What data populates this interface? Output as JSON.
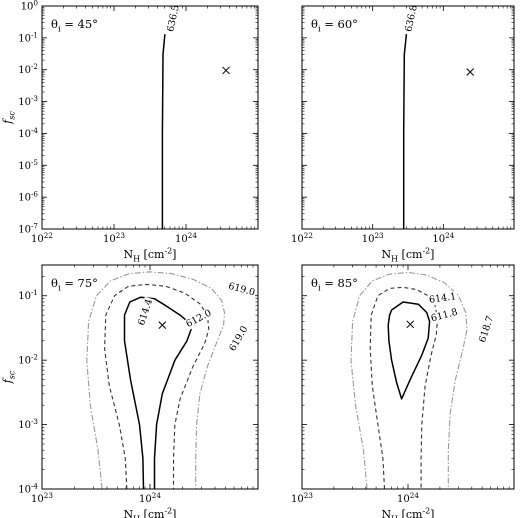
{
  "chart_data": [
    {
      "type": "contour",
      "panel_label": "θi = 45°",
      "xlabel": "N_H [cm^-2]",
      "ylabel": "f_sc",
      "x_scale": "log",
      "y_scale": "log",
      "xlim": [
        1e+22,
        1e+25
      ],
      "ylim": [
        1e-07,
        1
      ],
      "x_ticks": [
        {
          "value": 1e+22,
          "label": "10^22"
        },
        {
          "value": 1e+23,
          "label": "10^23"
        },
        {
          "value": 1e+24,
          "label": "10^24"
        }
      ],
      "y_ticks": [
        {
          "value": 1e-07,
          "label": "10^-7"
        },
        {
          "value": 1e-06,
          "label": "10^-6"
        },
        {
          "value": 1e-05,
          "label": "10^-5"
        },
        {
          "value": 0.0001,
          "label": "10^-4"
        },
        {
          "value": 0.001,
          "label": "10^-3"
        },
        {
          "value": 0.01,
          "label": "10^-2"
        },
        {
          "value": 0.1,
          "label": "10^-1"
        },
        {
          "value": 1,
          "label": "10^0"
        }
      ],
      "best_fit": {
        "x": 3.6e+24,
        "y": 0.0095
      },
      "contours": [
        {
          "level_label": "636.5",
          "style": "solid",
          "points": [
            [
              4.7e+23,
              1e-07
            ],
            [
              4.7e+23,
              0.0001
            ],
            [
              4.8e+23,
              0.03
            ],
            [
              5.1e+23,
              0.13
            ]
          ]
        }
      ]
    },
    {
      "type": "contour",
      "panel_label": "θi = 60°",
      "xlabel": "N_H [cm^-2]",
      "ylabel": "",
      "x_scale": "log",
      "y_scale": "log",
      "xlim": [
        1e+22,
        1e+25
      ],
      "ylim": [
        1e-07,
        1
      ],
      "x_ticks": [
        {
          "value": 1e+22,
          "label": "10^22"
        },
        {
          "value": 1e+23,
          "label": "10^23"
        },
        {
          "value": 1e+24,
          "label": "10^24"
        }
      ],
      "y_ticks": [],
      "best_fit": {
        "x": 2.4e+24,
        "y": 0.0085
      },
      "contours": [
        {
          "level_label": "636.8",
          "style": "solid",
          "points": [
            [
              2.75e+23,
              1e-07
            ],
            [
              2.75e+23,
              0.0001
            ],
            [
              2.8e+23,
              0.03
            ],
            [
              3e+23,
              0.13
            ]
          ]
        }
      ]
    },
    {
      "type": "contour",
      "panel_label": "θi = 75°",
      "xlabel": "N_H [cm^-2]",
      "ylabel": "f_sc",
      "x_scale": "log",
      "y_scale": "log",
      "xlim": [
        1e+23,
        1e+25
      ],
      "ylim": [
        0.0001,
        0.3
      ],
      "x_ticks": [
        {
          "value": 1e+23,
          "label": "10^23"
        },
        {
          "value": 1e+24,
          "label": "10^24"
        }
      ],
      "y_ticks": [
        {
          "value": 0.0001,
          "label": "10^-4"
        },
        {
          "value": 0.001,
          "label": "10^-3"
        },
        {
          "value": 0.01,
          "label": "10^-2"
        },
        {
          "value": 0.1,
          "label": "10^-1"
        }
      ],
      "best_fit": {
        "x": 1.3e+24,
        "y": 0.035
      },
      "contours": [
        {
          "level_label": "612.0",
          "style": "solid",
          "closed": false,
          "points": [
            [
              8.7e+23,
              0.0001
            ],
            [
              8.6e+23,
              0.0003
            ],
            [
              8e+23,
              0.001
            ],
            [
              6.6e+23,
              0.005
            ],
            [
              5.8e+23,
              0.02
            ],
            [
              5.8e+23,
              0.05
            ],
            [
              6.5e+23,
              0.08
            ],
            [
              8.2e+23,
              0.095
            ],
            [
              1.1e+24,
              0.09
            ],
            [
              1.4e+24,
              0.07
            ],
            [
              1.9e+24,
              0.05
            ],
            [
              2.3e+24,
              0.038
            ],
            [
              2.4e+24,
              0.03
            ],
            [
              2.2e+24,
              0.02
            ],
            [
              1.7e+24,
              0.01
            ],
            [
              1.3e+24,
              0.003
            ],
            [
              1.15e+24,
              0.001
            ],
            [
              1.1e+24,
              0.0003
            ],
            [
              1.1e+24,
              0.0001
            ]
          ]
        },
        {
          "level_label": "614.4",
          "style": "dashed",
          "closed": false,
          "points": [
            [
              6.1e+23,
              0.0001
            ],
            [
              5.9e+23,
              0.0003
            ],
            [
              5.2e+23,
              0.001
            ],
            [
              4.2e+23,
              0.004
            ],
            [
              3.8e+23,
              0.015
            ],
            [
              3.9e+23,
              0.05
            ],
            [
              4.7e+23,
              0.1
            ],
            [
              6.3e+23,
              0.14
            ],
            [
              9.3e+23,
              0.15
            ],
            [
              1.4e+24,
              0.14
            ],
            [
              2.1e+24,
              0.11
            ],
            [
              2.9e+24,
              0.075
            ],
            [
              3.4e+24,
              0.05
            ],
            [
              3.5e+24,
              0.03
            ],
            [
              3.2e+24,
              0.018
            ],
            [
              2.5e+24,
              0.008
            ],
            [
              1.9e+24,
              0.0025
            ],
            [
              1.7e+24,
              0.001
            ],
            [
              1.65e+24,
              0.0003
            ],
            [
              1.65e+24,
              0.0001
            ]
          ]
        },
        {
          "level_label": "619.0",
          "style": "dashdot",
          "closed": false,
          "points": [
            [
              3.6e+23,
              0.0001
            ],
            [
              3.3e+23,
              0.0004
            ],
            [
              2.8e+23,
              0.002
            ],
            [
              2.6e+23,
              0.01
            ],
            [
              2.7e+23,
              0.04
            ],
            [
              3.2e+23,
              0.1
            ],
            [
              4.3e+23,
              0.17
            ],
            [
              6.4e+23,
              0.22
            ],
            [
              1e+24,
              0.235
            ],
            [
              1.6e+24,
              0.22
            ],
            [
              2.5e+24,
              0.18
            ],
            [
              3.7e+24,
              0.13
            ],
            [
              4.6e+24,
              0.085
            ],
            [
              4.9e+24,
              0.055
            ],
            [
              4.8e+24,
              0.035
            ],
            [
              4.2e+24,
              0.02
            ],
            [
              3.4e+24,
              0.008
            ],
            [
              2.9e+24,
              0.003
            ],
            [
              2.7e+24,
              0.001
            ],
            [
              2.65e+24,
              0.0003
            ],
            [
              2.65e+24,
              0.0001
            ]
          ]
        }
      ]
    },
    {
      "type": "contour",
      "panel_label": "θi = 85°",
      "xlabel": "N_H [cm^-2]",
      "ylabel": "",
      "x_scale": "log",
      "y_scale": "log",
      "xlim": [
        1e+23,
        1e+25
      ],
      "ylim": [
        0.0001,
        0.3
      ],
      "x_ticks": [
        {
          "value": 1e+23,
          "label": "10^23"
        },
        {
          "value": 1e+24,
          "label": "10^24"
        }
      ],
      "y_ticks": [],
      "best_fit": {
        "x": 1.05e+24,
        "y": 0.036
      },
      "contours": [
        {
          "level_label": "611.8",
          "style": "solid",
          "closed": true,
          "points": [
            [
              7e+23,
              0.06
            ],
            [
              9e+23,
              0.08
            ],
            [
              1.25e+24,
              0.074
            ],
            [
              1.5e+24,
              0.055
            ],
            [
              1.6e+24,
              0.04
            ],
            [
              1.55e+24,
              0.022
            ],
            [
              1.35e+24,
              0.012
            ],
            [
              1.05e+24,
              0.005
            ],
            [
              8.7e+23,
              0.0025
            ],
            [
              7.8e+23,
              0.0045
            ],
            [
              7e+23,
              0.01
            ],
            [
              6.6e+23,
              0.02
            ],
            [
              6.5e+23,
              0.035
            ],
            [
              6.7e+23,
              0.05
            ]
          ]
        },
        {
          "level_label": "614.1",
          "style": "dashed",
          "closed": false,
          "points": [
            [
              6e+23,
              0.0001
            ],
            [
              5.8e+23,
              0.0003
            ],
            [
              5.2e+23,
              0.001
            ],
            [
              4.6e+23,
              0.004
            ],
            [
              4.4e+23,
              0.015
            ],
            [
              4.5e+23,
              0.05
            ],
            [
              5.2e+23,
              0.1
            ],
            [
              6.7e+23,
              0.13
            ],
            [
              9e+23,
              0.135
            ],
            [
              1.2e+24,
              0.125
            ],
            [
              1.55e+24,
              0.1
            ],
            [
              1.8e+24,
              0.07
            ],
            [
              1.9e+24,
              0.045
            ],
            [
              1.85e+24,
              0.025
            ],
            [
              1.65e+24,
              0.012
            ],
            [
              1.45e+24,
              0.004
            ],
            [
              1.35e+24,
              0.001
            ],
            [
              1.33e+24,
              0.0003
            ],
            [
              1.33e+24,
              0.0001
            ]
          ]
        },
        {
          "level_label": "618.7",
          "style": "dashdot",
          "closed": false,
          "points": [
            [
              4.1e+23,
              0.0001
            ],
            [
              3.8e+23,
              0.0004
            ],
            [
              3.2e+23,
              0.002
            ],
            [
              2.9e+23,
              0.01
            ],
            [
              3e+23,
              0.04
            ],
            [
              3.5e+23,
              0.1
            ],
            [
              4.6e+23,
              0.17
            ],
            [
              6.6e+23,
              0.215
            ],
            [
              1e+24,
              0.23
            ],
            [
              1.5e+24,
              0.21
            ],
            [
              2.2e+24,
              0.16
            ],
            [
              3e+24,
              0.1
            ],
            [
              3.5e+24,
              0.055
            ],
            [
              3.6e+24,
              0.03
            ],
            [
              3.3e+24,
              0.015
            ],
            [
              2.8e+24,
              0.005
            ],
            [
              2.5e+24,
              0.0015
            ],
            [
              2.4e+24,
              0.0004
            ],
            [
              2.4e+24,
              0.0001
            ]
          ]
        }
      ]
    }
  ]
}
